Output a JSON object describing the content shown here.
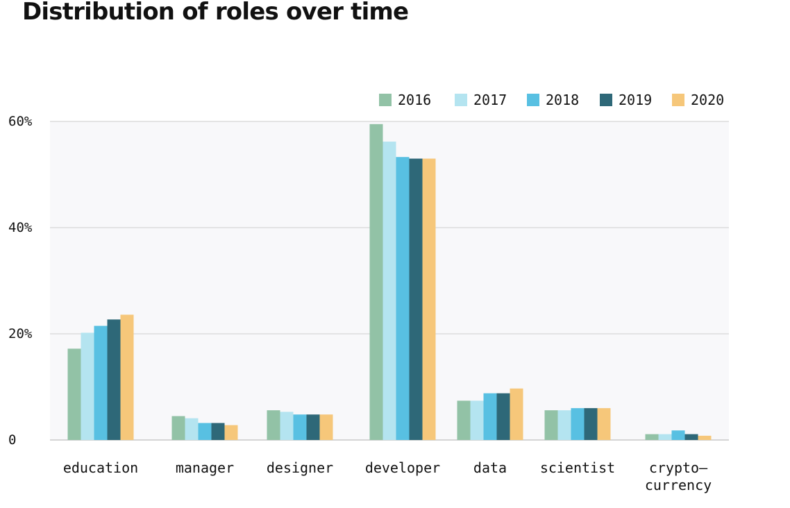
{
  "chart_data": {
    "type": "bar",
    "title": "Distribution of roles over time",
    "xlabel": "",
    "ylabel": "",
    "ylim": [
      0,
      60
    ],
    "y_ticks": [
      {
        "value": 0,
        "label": "0"
      },
      {
        "value": 20,
        "label": "20%"
      },
      {
        "value": 40,
        "label": "40%"
      },
      {
        "value": 60,
        "label": "60%"
      }
    ],
    "grid": true,
    "legend_position": "top-right",
    "categories": [
      {
        "label": "education",
        "label_lines": [
          "education"
        ]
      },
      {
        "label": "manager",
        "label_lines": [
          "manager"
        ]
      },
      {
        "label": "designer",
        "label_lines": [
          "designer"
        ]
      },
      {
        "label": "developer",
        "label_lines": [
          "developer"
        ]
      },
      {
        "label": "data",
        "label_lines": [
          "data"
        ]
      },
      {
        "label": "scientist",
        "label_lines": [
          "scientist"
        ]
      },
      {
        "label": "crypto-currency",
        "label_lines": [
          "crypto—",
          "currency"
        ]
      }
    ],
    "series": [
      {
        "name": "2016",
        "color": "#92c2a6",
        "values": [
          17.2,
          4.5,
          5.6,
          59.5,
          7.4,
          5.6,
          1.1
        ]
      },
      {
        "name": "2017",
        "color": "#b4e4f0",
        "values": [
          20.2,
          4.1,
          5.3,
          56.2,
          7.4,
          5.6,
          1.1
        ]
      },
      {
        "name": "2018",
        "color": "#58c0e2",
        "values": [
          21.5,
          3.2,
          4.8,
          53.3,
          8.8,
          6.0,
          1.8
        ]
      },
      {
        "name": "2019",
        "color": "#2e6878",
        "values": [
          22.7,
          3.2,
          4.8,
          53.0,
          8.8,
          6.0,
          1.1
        ]
      },
      {
        "name": "2020",
        "color": "#f6c77a",
        "values": [
          23.6,
          2.8,
          4.8,
          53.0,
          9.7,
          6.0,
          0.8
        ]
      }
    ]
  },
  "colors": {
    "plot_background": "#f8f8fa",
    "gridline": "#dcdcdc",
    "axis": "#c8c8c8",
    "text": "#111111"
  }
}
